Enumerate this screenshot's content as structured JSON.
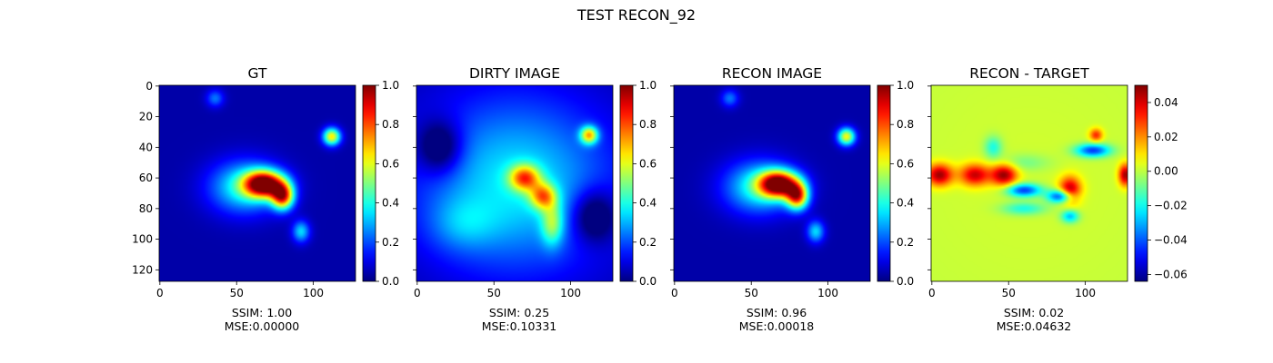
{
  "figure": {
    "suptitle": "TEST RECON_92"
  },
  "chart_data": [
    {
      "type": "heatmap",
      "title": "GT",
      "image_size": [
        128,
        128
      ],
      "xticks": [
        0,
        50,
        100
      ],
      "yticks": [
        0,
        20,
        40,
        60,
        80,
        100,
        120
      ],
      "show_yticklabels": true,
      "colormap": "jet",
      "colorbar": {
        "range": [
          0.0,
          1.0
        ],
        "ticks": [
          0.0,
          0.2,
          0.4,
          0.6,
          0.8,
          1.0
        ],
        "tick_labels": [
          "0.0",
          "0.2",
          "0.4",
          "0.6",
          "0.8",
          "1.0"
        ]
      },
      "metrics": [
        "SSIM: 1.00",
        "MSE:0.00000"
      ],
      "features": [
        {
          "x": 68,
          "y": 64,
          "sx": 9,
          "sy": 6,
          "amp": 0.95
        },
        {
          "x": 80,
          "y": 72,
          "sx": 5,
          "sy": 6,
          "amp": 0.75
        },
        {
          "x": 55,
          "y": 66,
          "sx": 16,
          "sy": 12,
          "amp": 0.35
        },
        {
          "x": 112,
          "y": 33,
          "sx": 4,
          "sy": 4,
          "amp": 0.6
        },
        {
          "x": 92,
          "y": 95,
          "sx": 4,
          "sy": 5,
          "amp": 0.3
        },
        {
          "x": 36,
          "y": 8,
          "sx": 4,
          "sy": 4,
          "amp": 0.2
        }
      ]
    },
    {
      "type": "heatmap",
      "title": "DIRTY IMAGE",
      "image_size": [
        128,
        128
      ],
      "xticks": [
        0,
        50,
        100
      ],
      "yticks": [
        0,
        20,
        40,
        60,
        80,
        100,
        120
      ],
      "show_yticklabels": false,
      "colormap": "jet",
      "colorbar": {
        "range": [
          0.0,
          1.0
        ],
        "ticks": [
          0.0,
          0.2,
          0.4,
          0.6,
          0.8,
          1.0
        ],
        "tick_labels": [
          "0.0",
          "0.2",
          "0.4",
          "0.6",
          "0.8",
          "1.0"
        ]
      },
      "metrics": [
        "SSIM: 0.25",
        "MSE:0.10331"
      ],
      "features": [
        {
          "x": 64,
          "y": 64,
          "sx": 45,
          "sy": 40,
          "amp": 0.32
        },
        {
          "x": 70,
          "y": 60,
          "sx": 7,
          "sy": 6,
          "amp": 0.5
        },
        {
          "x": 82,
          "y": 72,
          "sx": 6,
          "sy": 6,
          "amp": 0.45
        },
        {
          "x": 88,
          "y": 90,
          "sx": 5,
          "sy": 10,
          "amp": 0.3
        },
        {
          "x": 112,
          "y": 32,
          "sx": 4,
          "sy": 4,
          "amp": 0.55
        },
        {
          "x": 15,
          "y": 40,
          "sx": 10,
          "sy": 12,
          "amp": -0.25
        },
        {
          "x": 115,
          "y": 85,
          "sx": 10,
          "sy": 12,
          "amp": -0.25
        },
        {
          "x": 30,
          "y": 90,
          "sx": 15,
          "sy": 12,
          "amp": 0.12
        }
      ]
    },
    {
      "type": "heatmap",
      "title": "RECON IMAGE",
      "image_size": [
        128,
        128
      ],
      "xticks": [
        0,
        50,
        100
      ],
      "yticks": [
        0,
        20,
        40,
        60,
        80,
        100,
        120
      ],
      "show_yticklabels": false,
      "colormap": "jet",
      "colorbar": {
        "range": [
          0.0,
          1.0
        ],
        "ticks": [
          0.0,
          0.2,
          0.4,
          0.6,
          0.8,
          1.0
        ],
        "tick_labels": [
          "0.0",
          "0.2",
          "0.4",
          "0.6",
          "0.8",
          "1.0"
        ]
      },
      "metrics": [
        "SSIM: 0.96",
        "MSE:0.00018"
      ],
      "features": [
        {
          "x": 68,
          "y": 64,
          "sx": 9,
          "sy": 6,
          "amp": 0.93
        },
        {
          "x": 80,
          "y": 72,
          "sx": 5,
          "sy": 6,
          "amp": 0.72
        },
        {
          "x": 55,
          "y": 66,
          "sx": 16,
          "sy": 12,
          "amp": 0.35
        },
        {
          "x": 112,
          "y": 33,
          "sx": 4,
          "sy": 4,
          "amp": 0.58
        },
        {
          "x": 92,
          "y": 95,
          "sx": 4,
          "sy": 5,
          "amp": 0.3
        },
        {
          "x": 36,
          "y": 8,
          "sx": 4,
          "sy": 4,
          "amp": 0.2
        }
      ]
    },
    {
      "type": "heatmap",
      "title": "RECON - TARGET",
      "image_size": [
        128,
        128
      ],
      "xticks": [
        0,
        50,
        100
      ],
      "yticks": [
        0,
        20,
        40,
        60,
        80,
        100,
        120
      ],
      "show_yticklabels": false,
      "colormap": "jet",
      "colorbar": {
        "range": [
          -0.064,
          0.05
        ],
        "ticks": [
          -0.06,
          -0.04,
          -0.02,
          0.0,
          0.02,
          0.04
        ],
        "tick_labels": [
          "−0.06",
          "−0.04",
          "−0.02",
          "0.00",
          "0.02",
          "0.04"
        ]
      },
      "metrics": [
        "SSIM: 0.02",
        "MSE:0.04632"
      ],
      "features": [
        {
          "x": 64,
          "y": 60,
          "sx": 70,
          "sy": 70,
          "amp": 0.002
        },
        {
          "x": 5,
          "y": 58,
          "sx": 6,
          "sy": 5,
          "amp": 0.045
        },
        {
          "x": 28,
          "y": 58,
          "sx": 7,
          "sy": 5,
          "amp": 0.04
        },
        {
          "x": 47,
          "y": 58,
          "sx": 6,
          "sy": 5,
          "amp": 0.045
        },
        {
          "x": 90,
          "y": 68,
          "sx": 5,
          "sy": 6,
          "amp": 0.045
        },
        {
          "x": 126,
          "y": 58,
          "sx": 3,
          "sy": 5,
          "amp": 0.045
        },
        {
          "x": 107,
          "y": 32,
          "sx": 3,
          "sy": 3,
          "amp": 0.03
        },
        {
          "x": 60,
          "y": 68,
          "sx": 8,
          "sy": 3,
          "amp": -0.045
        },
        {
          "x": 84,
          "y": 72,
          "sx": 6,
          "sy": 3,
          "amp": -0.05
        },
        {
          "x": 105,
          "y": 42,
          "sx": 8,
          "sy": 3,
          "amp": -0.045
        },
        {
          "x": 60,
          "y": 80,
          "sx": 10,
          "sy": 3,
          "amp": -0.02
        },
        {
          "x": 90,
          "y": 85,
          "sx": 4,
          "sy": 3,
          "amp": -0.03
        },
        {
          "x": 40,
          "y": 40,
          "sx": 4,
          "sy": 5,
          "amp": -0.02
        },
        {
          "x": 60,
          "y": 50,
          "sx": 12,
          "sy": 4,
          "amp": -0.01
        }
      ]
    }
  ]
}
